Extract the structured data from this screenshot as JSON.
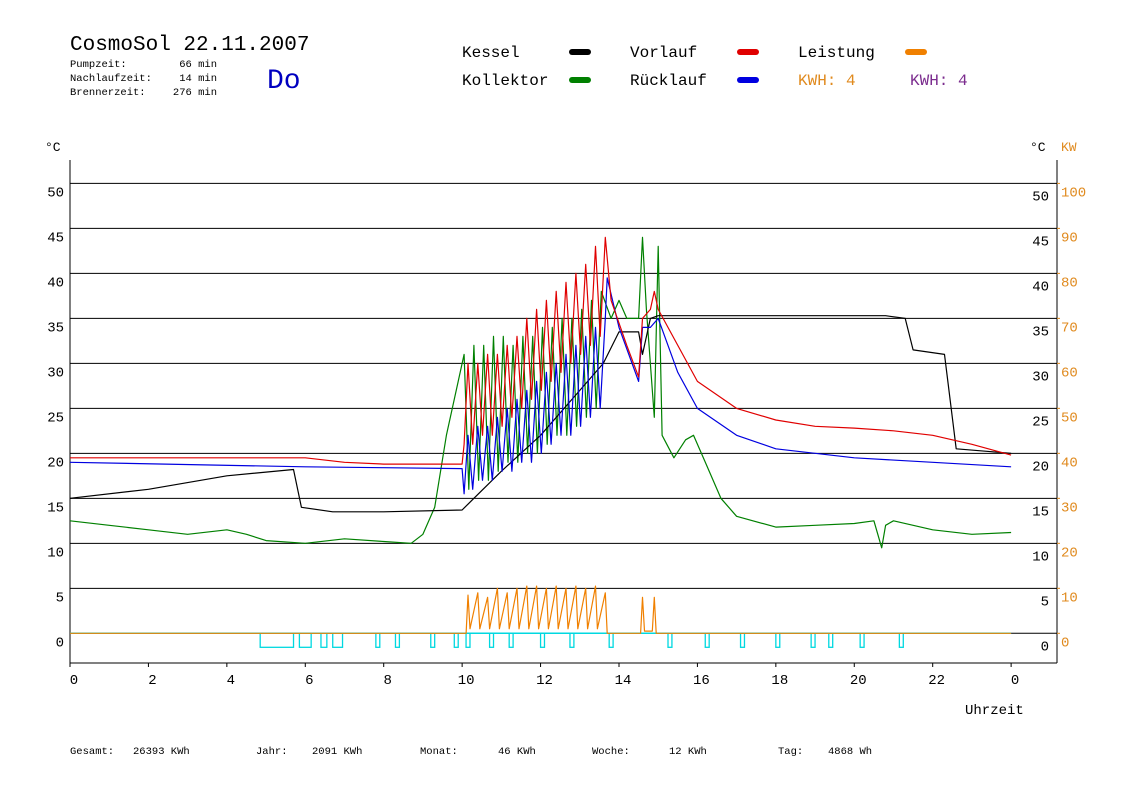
{
  "header": {
    "title": "CosmoSol 22.11.2007",
    "weekday": "Do",
    "stats": [
      {
        "label": "Pumpzeit:",
        "value": "66 min"
      },
      {
        "label": "Nachlaufzeit:",
        "value": "14 min"
      },
      {
        "label": "Brennerzeit:",
        "value": "276 min"
      }
    ],
    "kwh_labels": [
      {
        "text": "KWH: 4",
        "color": "#e08a1e"
      },
      {
        "text": "KWH: 4",
        "color": "#7b2c8e"
      }
    ]
  },
  "chart_data": {
    "type": "line",
    "y_unit": "°C",
    "y2_unit_deg": "°C",
    "y2_unit": "KW",
    "xlabel": "Uhrzeit",
    "xlim": [
      0,
      25.17
    ],
    "xticks": [
      0,
      2,
      4,
      6,
      8,
      10,
      12,
      14,
      16,
      18,
      20,
      22,
      {
        "value": 24,
        "label": "0"
      }
    ],
    "ylim": [
      -3.3,
      52.6
    ],
    "yticks": [
      0,
      5,
      10,
      15,
      20,
      25,
      30,
      35,
      40,
      45,
      50
    ],
    "y2lim": [
      -6.6,
      105.2
    ],
    "y2ticks": [
      0,
      10,
      20,
      30,
      40,
      50,
      60,
      70,
      80,
      90,
      100
    ],
    "grid": true,
    "series": [
      {
        "name": "Kessel",
        "color": "#000000",
        "x": [
          0,
          2,
          4,
          5.7,
          5.9,
          6.7,
          8,
          10,
          10.3,
          11,
          12,
          13,
          13.6,
          14,
          14.5,
          14.6,
          14.8,
          15,
          20.8,
          21.3,
          21.5,
          22.3,
          22.6,
          24
        ],
        "values": [
          15,
          16,
          17.5,
          18.2,
          14,
          13.5,
          13.5,
          13.7,
          15,
          18,
          22,
          27,
          30,
          33.5,
          33.5,
          31,
          35,
          35.3,
          35.3,
          35,
          31.5,
          31,
          20.5,
          20
        ]
      },
      {
        "name": "Kollektor",
        "color": "#008000",
        "x": [
          0,
          1,
          2,
          3,
          4,
          4.5,
          5,
          6,
          7,
          8,
          8.7,
          9,
          9.3,
          9.6,
          9.9,
          10.05,
          10.17,
          10.3,
          10.42,
          10.55,
          10.67,
          10.8,
          10.92,
          11.05,
          11.17,
          11.3,
          11.42,
          11.55,
          11.67,
          11.8,
          11.92,
          12.05,
          12.17,
          12.3,
          12.42,
          12.55,
          12.67,
          12.8,
          12.92,
          13.05,
          13.17,
          13.3,
          13.42,
          13.55,
          13.8,
          14,
          14.2,
          14.5,
          14.6,
          14.7,
          14.9,
          15,
          15.1,
          15.4,
          15.7,
          15.9,
          16.2,
          16.6,
          17,
          18,
          19,
          20,
          20.5,
          20.7,
          20.8,
          21,
          22,
          23,
          24
        ],
        "values": [
          12.5,
          12,
          11.5,
          11,
          11.5,
          11,
          10.3,
          10,
          10.5,
          10.2,
          10,
          11,
          14,
          22,
          28,
          31,
          16,
          32,
          17,
          32,
          17,
          33,
          18,
          33,
          19,
          32,
          19,
          33,
          20,
          33,
          20,
          34,
          21,
          34,
          22,
          35,
          22,
          35,
          23,
          36,
          24,
          37,
          25,
          38,
          35,
          37,
          35,
          35,
          44,
          36,
          24,
          43,
          22,
          19.5,
          21.5,
          22,
          19,
          15,
          13,
          11.8,
          12,
          12.2,
          12.5,
          9.5,
          12,
          12.5,
          11.5,
          11,
          11.2
        ]
      },
      {
        "name": "Vorlauf",
        "color": "#e00000",
        "x": [
          0,
          6,
          7,
          8,
          10,
          10.05,
          10.15,
          10.27,
          10.4,
          10.52,
          10.65,
          10.77,
          10.9,
          11.02,
          11.15,
          11.27,
          11.4,
          11.52,
          11.65,
          11.77,
          11.9,
          12.02,
          12.15,
          12.27,
          12.4,
          12.52,
          12.65,
          12.77,
          12.9,
          13.02,
          13.15,
          13.27,
          13.4,
          13.52,
          13.65,
          13.8,
          14.2,
          14.5,
          14.6,
          14.8,
          14.9,
          15,
          15.5,
          16,
          17,
          18,
          19,
          20,
          21,
          22,
          23,
          24
        ],
        "values": [
          19.5,
          19.5,
          19,
          18.8,
          18.8,
          21,
          30,
          21,
          30,
          22,
          31,
          22,
          31,
          23,
          32,
          24,
          33,
          25,
          35,
          26,
          36,
          27,
          37,
          28,
          38,
          29,
          39,
          30,
          40,
          31,
          41,
          32,
          43,
          33,
          44,
          37,
          32,
          28.5,
          35,
          36,
          38,
          36,
          32,
          28,
          25,
          23.7,
          23,
          22.8,
          22.5,
          22,
          21,
          19.8
        ]
      },
      {
        "name": "Rücklauf",
        "color": "#0000e0",
        "x": [
          0,
          6,
          8,
          10,
          10.05,
          10.15,
          10.27,
          10.4,
          10.52,
          10.65,
          10.77,
          10.9,
          11.02,
          11.15,
          11.27,
          11.4,
          11.52,
          11.65,
          11.77,
          11.9,
          12.02,
          12.15,
          12.27,
          12.4,
          12.52,
          12.65,
          12.77,
          12.9,
          13.02,
          13.15,
          13.27,
          13.4,
          13.52,
          13.65,
          13.7,
          14,
          14.5,
          14.6,
          14.8,
          15,
          15.5,
          16,
          17,
          18,
          20,
          22,
          24
        ],
        "values": [
          19,
          18.5,
          18.4,
          18.3,
          15.5,
          22,
          16,
          23,
          17,
          23,
          17,
          24,
          18,
          25,
          18,
          26,
          19,
          27,
          19,
          28,
          20,
          29,
          21,
          30,
          22,
          31,
          22,
          32,
          23,
          33,
          24,
          34,
          25,
          35,
          39.5,
          34,
          28,
          34,
          34,
          35,
          29,
          25,
          22,
          20.5,
          19.5,
          19,
          18.5
        ]
      },
      {
        "name": "Leistung",
        "color": "#f08000",
        "axis": "y2",
        "x": [
          0,
          10.1,
          10.15,
          10.2,
          10.4,
          10.45,
          10.65,
          10.7,
          10.9,
          10.95,
          11.15,
          11.2,
          11.4,
          11.45,
          11.65,
          11.7,
          11.9,
          11.95,
          12.15,
          12.2,
          12.4,
          12.45,
          12.65,
          12.7,
          12.9,
          12.95,
          13.15,
          13.2,
          13.4,
          13.45,
          13.65,
          13.7,
          14.55,
          14.6,
          14.65,
          14.85,
          14.9,
          14.95,
          24
        ],
        "values": [
          0,
          0,
          8.5,
          1,
          9,
          1,
          8,
          1,
          10,
          1,
          9,
          1,
          10,
          1,
          10.5,
          1,
          10.5,
          1,
          10,
          1,
          10.5,
          1,
          10,
          1,
          10.5,
          1,
          10,
          1,
          10.5,
          1,
          9,
          0,
          0,
          8,
          0.5,
          0.5,
          8,
          0,
          0
        ]
      }
    ],
    "pump_color": "#00d8e0",
    "pump_intervals": [
      [
        4.85,
        5.7
      ],
      [
        5.85,
        6.15
      ],
      [
        6.4,
        6.55
      ],
      [
        6.7,
        6.95
      ],
      [
        7.8,
        7.9
      ],
      [
        8.3,
        8.4
      ],
      [
        9.2,
        9.3
      ],
      [
        9.8,
        9.9
      ],
      [
        10.1,
        10.2
      ],
      [
        10.7,
        10.8
      ],
      [
        11.2,
        11.3
      ],
      [
        12,
        12.1
      ],
      [
        12.75,
        12.85
      ],
      [
        13.75,
        13.85
      ],
      [
        15.25,
        15.35
      ],
      [
        16.2,
        16.3
      ],
      [
        17.1,
        17.2
      ],
      [
        18,
        18.1
      ],
      [
        18.9,
        19
      ],
      [
        19.35,
        19.45
      ],
      [
        20.15,
        20.25
      ],
      [
        21.15,
        21.25
      ]
    ]
  },
  "footer": [
    {
      "label": "Gesamt:",
      "value": "26393 KWh"
    },
    {
      "label": "Jahr:",
      "value": "2091 KWh"
    },
    {
      "label": "Monat:",
      "value": "46 KWh"
    },
    {
      "label": "Woche:",
      "value": "12 KWh"
    },
    {
      "label": "Tag:",
      "value": "4868 Wh"
    }
  ]
}
